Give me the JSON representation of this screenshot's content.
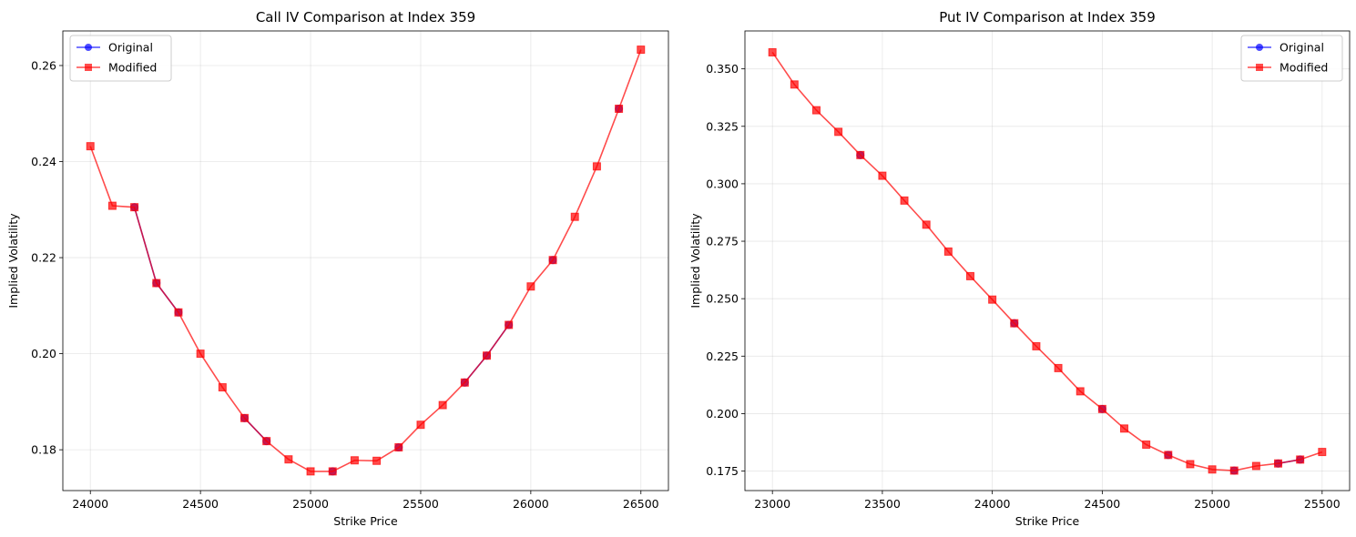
{
  "chart_data": [
    {
      "type": "line",
      "title": "Call IV Comparison at Index 359",
      "xlabel": "Strike Price",
      "ylabel": "Implied Volatility",
      "xlim": [
        23875,
        26625
      ],
      "ylim": [
        0.1715,
        0.2672
      ],
      "xticks": [
        24000,
        24500,
        25000,
        25500,
        26000,
        26500
      ],
      "yticks": [
        0.18,
        0.2,
        0.22,
        0.24,
        0.26
      ],
      "ytick_decimals": 2,
      "grid": true,
      "legend": "top-left",
      "series": [
        {
          "name": "Original",
          "color": "#0000ff",
          "marker": "circle",
          "segments": [
            {
              "x": [
                24200,
                24300,
                24400
              ],
              "y": [
                0.2305,
                0.2147,
                0.2086
              ]
            },
            {
              "x": [
                24700,
                24800
              ],
              "y": [
                0.1866,
                0.1818
              ]
            },
            {
              "x": [
                25100
              ],
              "y": [
                0.1755
              ]
            },
            {
              "x": [
                25400
              ],
              "y": [
                0.1805
              ]
            },
            {
              "x": [
                25700,
                25800,
                25900
              ],
              "y": [
                0.194,
                0.1996,
                0.206
              ]
            },
            {
              "x": [
                26100
              ],
              "y": [
                0.2195
              ]
            },
            {
              "x": [
                26400
              ],
              "y": [
                0.251
              ]
            }
          ]
        },
        {
          "name": "Modified",
          "color": "#ff0000",
          "marker": "square",
          "segments": [
            {
              "x": [
                24000,
                24100,
                24200,
                24300,
                24400,
                24500,
                24600,
                24700,
                24800,
                24900,
                25000,
                25100,
                25200,
                25300,
                25400,
                25500,
                25600,
                25700,
                25800,
                25900,
                26000,
                26100,
                26200,
                26300,
                26400,
                26500
              ],
              "y": [
                0.2432,
                0.2308,
                0.2305,
                0.2147,
                0.2086,
                0.2,
                0.193,
                0.1866,
                0.1818,
                0.178,
                0.1755,
                0.1755,
                0.1778,
                0.1777,
                0.1805,
                0.1852,
                0.1893,
                0.194,
                0.1996,
                0.206,
                0.214,
                0.2195,
                0.2285,
                0.239,
                0.251,
                0.2633
              ]
            }
          ]
        }
      ]
    },
    {
      "type": "line",
      "title": "Put IV Comparison at Index 359",
      "xlabel": "Strike Price",
      "ylabel": "Implied Volatility",
      "xlim": [
        22875,
        25625
      ],
      "ylim": [
        0.1665,
        0.3665
      ],
      "xticks": [
        23000,
        23500,
        24000,
        24500,
        25000,
        25500
      ],
      "yticks": [
        0.175,
        0.2,
        0.225,
        0.25,
        0.275,
        0.3,
        0.325,
        0.35
      ],
      "ytick_decimals": 3,
      "grid": true,
      "legend": "top-right",
      "series": [
        {
          "name": "Original",
          "color": "#0000ff",
          "marker": "circle",
          "segments": [
            {
              "x": [
                23400
              ],
              "y": [
                0.3125
              ]
            },
            {
              "x": [
                24100
              ],
              "y": [
                0.2393
              ]
            },
            {
              "x": [
                24500
              ],
              "y": [
                0.202
              ]
            },
            {
              "x": [
                24800
              ],
              "y": [
                0.182
              ]
            },
            {
              "x": [
                25100
              ],
              "y": [
                0.1752
              ]
            },
            {
              "x": [
                25300,
                25400
              ],
              "y": [
                0.1783,
                0.18
              ]
            }
          ]
        },
        {
          "name": "Modified",
          "color": "#ff0000",
          "marker": "square",
          "segments": [
            {
              "x": [
                23000,
                23100,
                23200,
                23300,
                23400,
                23500,
                23600,
                23700,
                23800,
                23900,
                24000,
                24100,
                24200,
                24300,
                24400,
                24500,
                24600,
                24700,
                24800,
                24900,
                25000,
                25100,
                25200,
                25300,
                25400,
                25500
              ],
              "y": [
                0.3572,
                0.3432,
                0.332,
                0.3226,
                0.3125,
                0.3035,
                0.2927,
                0.2822,
                0.2705,
                0.2598,
                0.2496,
                0.2393,
                0.2293,
                0.2198,
                0.2097,
                0.202,
                0.1935,
                0.1865,
                0.182,
                0.178,
                0.1757,
                0.1752,
                0.1772,
                0.1783,
                0.18,
                0.1833
              ]
            }
          ]
        }
      ]
    }
  ]
}
